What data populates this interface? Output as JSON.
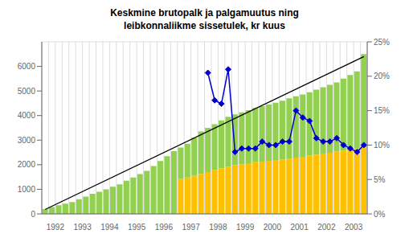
{
  "chart_data": {
    "type": "bar",
    "title": "Keskmine brutopalk ja palgamuutus ning\nleibkonnaliikme sissetulek, kr kuus",
    "categories": [
      null,
      "1992",
      null,
      null,
      null,
      "1993",
      null,
      null,
      null,
      "1994",
      null,
      null,
      null,
      "1995",
      null,
      null,
      null,
      "1996",
      null,
      null,
      null,
      "1997",
      null,
      null,
      null,
      "1998",
      null,
      null,
      null,
      "1999",
      null,
      null,
      null,
      "2000",
      null,
      null,
      null,
      "2001",
      null,
      null,
      null,
      "2002",
      null,
      null,
      null,
      "2003",
      null,
      null
    ],
    "stacked": true,
    "grid": true,
    "ylim": [
      0,
      7000
    ],
    "yticks": [
      0,
      1000,
      2000,
      3000,
      4000,
      5000,
      6000
    ],
    "y2lim": [
      0,
      25
    ],
    "y2ticks": [
      {
        "value": 0,
        "label": "0%"
      },
      {
        "value": 5,
        "label": "5%"
      },
      {
        "value": 10,
        "label": "10%"
      },
      {
        "value": 15,
        "label": "15%"
      },
      {
        "value": 20,
        "label": "20%"
      },
      {
        "value": 25,
        "label": "25%"
      }
    ],
    "series": [
      {
        "type": "bar",
        "color": "#FFC000",
        "values": [
          0,
          0,
          0,
          0,
          0,
          0,
          0,
          0,
          0,
          0,
          0,
          0,
          0,
          0,
          0,
          0,
          0,
          0,
          0,
          0,
          1420,
          1480,
          1550,
          1630,
          1700,
          1780,
          1850,
          1920,
          1980,
          2020,
          2060,
          2100,
          2130,
          2160,
          2190,
          2220,
          2250,
          2290,
          2320,
          2370,
          2410,
          2450,
          2490,
          2540,
          2580,
          2620,
          2660,
          2710
        ]
      },
      {
        "type": "bar",
        "color": "#92D050",
        "values": [
          200,
          280,
          350,
          420,
          480,
          600,
          700,
          820,
          900,
          1000,
          1100,
          1200,
          1350,
          1480,
          1620,
          1750,
          1950,
          2150,
          2350,
          2550,
          1280,
          1370,
          1550,
          1720,
          1800,
          1870,
          1950,
          2030,
          2070,
          2110,
          2160,
          2210,
          2250,
          2290,
          2330,
          2380,
          2450,
          2490,
          2540,
          2580,
          2640,
          2700,
          2760,
          2810,
          2920,
          3030,
          3140,
          3790
        ]
      },
      {
        "type": "line",
        "color": "#000000",
        "values": [
          180,
          null,
          null,
          null,
          null,
          null,
          null,
          null,
          null,
          null,
          null,
          null,
          null,
          null,
          null,
          null,
          null,
          null,
          null,
          null,
          null,
          null,
          null,
          null,
          null,
          null,
          null,
          null,
          null,
          null,
          null,
          null,
          null,
          null,
          null,
          null,
          null,
          null,
          null,
          null,
          null,
          null,
          null,
          null,
          null,
          null,
          null,
          6400
        ]
      },
      {
        "type": "line",
        "axis": "y2",
        "color": "#0000CD",
        "marker": "diamond",
        "values": [
          null,
          null,
          null,
          null,
          null,
          null,
          null,
          null,
          null,
          null,
          null,
          null,
          null,
          null,
          null,
          null,
          null,
          null,
          null,
          null,
          null,
          null,
          null,
          null,
          20.5,
          16.5,
          16.0,
          21.0,
          9.0,
          9.5,
          9.5,
          9.5,
          10.5,
          10.0,
          10.0,
          10.5,
          10.5,
          15.0,
          14.0,
          13.5,
          11.0,
          10.5,
          10.5,
          11.0,
          10.0,
          9.5,
          9.0,
          10.0
        ]
      }
    ]
  }
}
